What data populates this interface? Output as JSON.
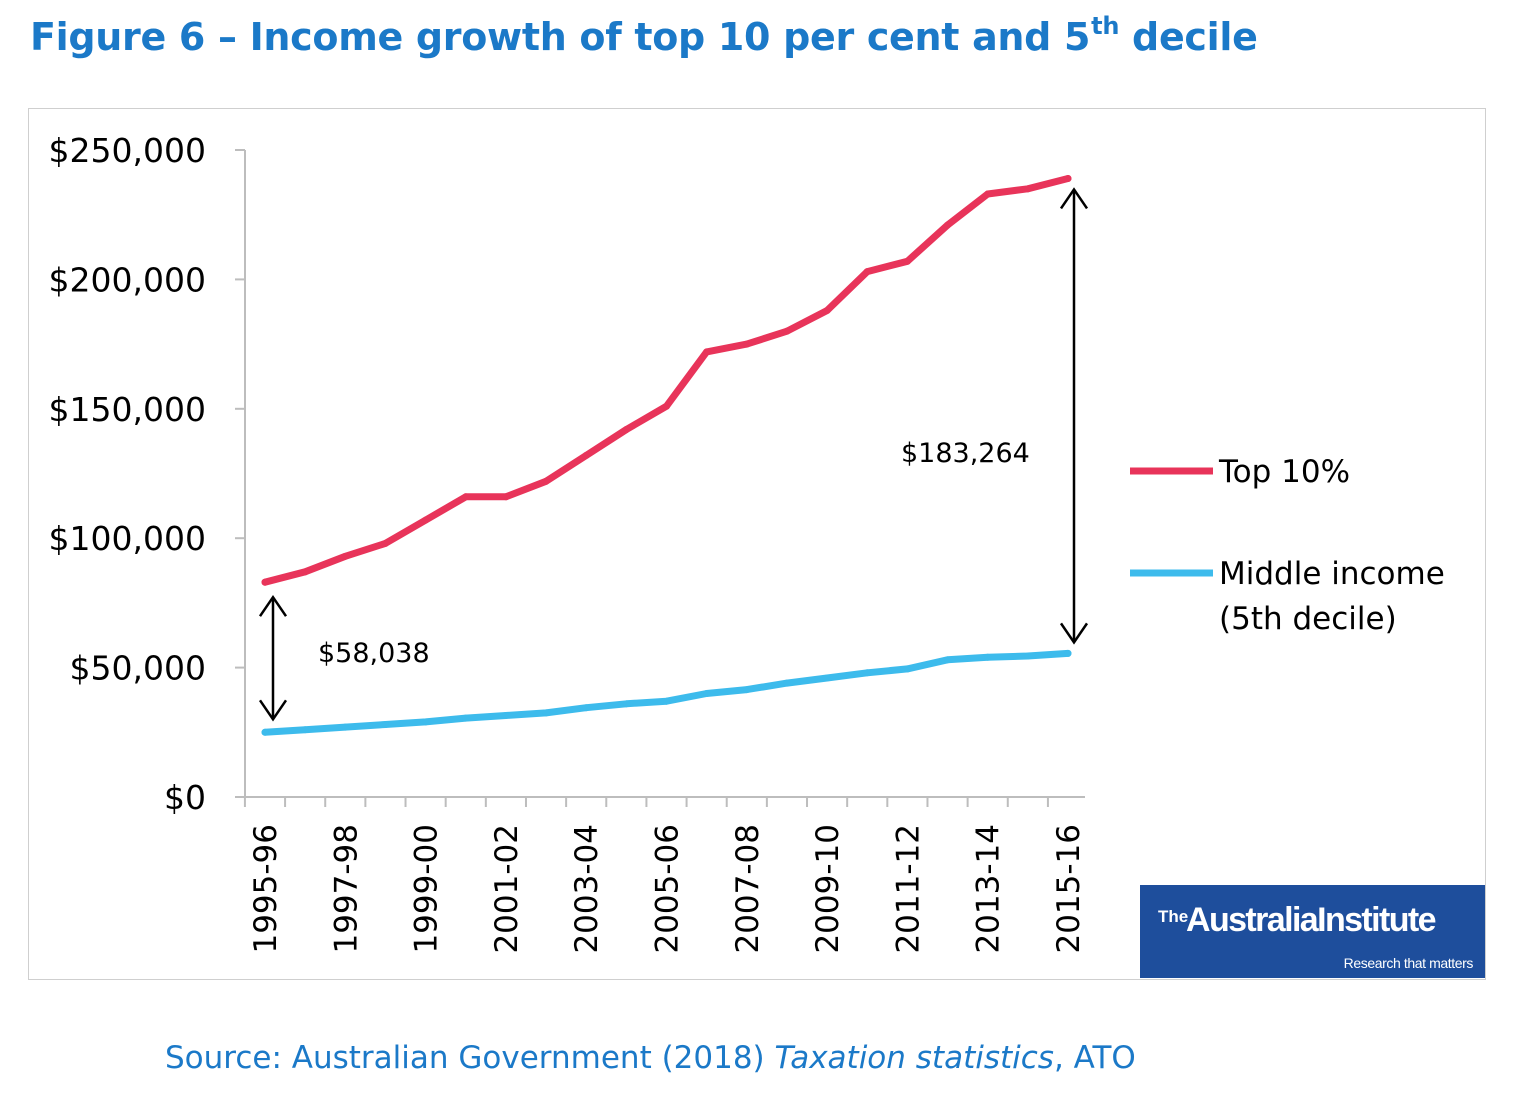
{
  "figure": {
    "title_main": "Figure 6 – Income growth of top 10 per cent and 5",
    "title_sup": "th",
    "title_end": " decile"
  },
  "chart_data": {
    "type": "line",
    "categories": [
      "1995-96",
      "1996-97",
      "1997-98",
      "1998-99",
      "1999-00",
      "2000-01",
      "2001-02",
      "2002-03",
      "2003-04",
      "2004-05",
      "2005-06",
      "2006-07",
      "2007-08",
      "2008-09",
      "2009-10",
      "2010-11",
      "2011-12",
      "2012-13",
      "2013-14",
      "2014-15",
      "2015-16"
    ],
    "tick_labels": [
      "1995-96",
      "1997-98",
      "1999-00",
      "2001-02",
      "2003-04",
      "2005-06",
      "2007-08",
      "2009-10",
      "2011-12",
      "2013-14",
      "2015-16"
    ],
    "series": [
      {
        "name": "Top 10%",
        "color": "#e8345a",
        "values": [
          83000,
          87000,
          93000,
          98000,
          107000,
          116000,
          116000,
          122000,
          132000,
          142000,
          151000,
          172000,
          175000,
          180000,
          188000,
          203000,
          207000,
          221000,
          233000,
          235000,
          239000
        ]
      },
      {
        "name": "Middle income (5th decile)",
        "color": "#3dbbec",
        "values": [
          25000,
          26000,
          27000,
          28000,
          29000,
          30500,
          31500,
          32500,
          34500,
          36000,
          37000,
          40000,
          41500,
          44000,
          46000,
          48000,
          49500,
          53000,
          54000,
          54500,
          55500
        ]
      }
    ],
    "ylim": [
      0,
      250000
    ],
    "yticks": [
      0,
      50000,
      100000,
      150000,
      200000,
      250000
    ],
    "ytick_labels": [
      "$0",
      "$50,000",
      "$100,000",
      "$150,000",
      "$200,000",
      "$250,000"
    ],
    "grid": false,
    "legend_position": "right",
    "annotations": [
      {
        "text": "$58,038",
        "category": "1995-96",
        "from": 25000,
        "to": 83000
      },
      {
        "text": "$183,264",
        "category": "2015-16",
        "from": 55500,
        "to": 239000
      }
    ]
  },
  "legend": {
    "top10": "Top 10%",
    "middle_line1": "Middle income",
    "middle_line2": "(5th decile)"
  },
  "logo": {
    "the": "The",
    "name": "AustraliaInstitute",
    "tagline": "Research that matters"
  },
  "source": {
    "prefix": "Source: Australian Government (2018) ",
    "italic": "Taxation statistics",
    "suffix": ", ATO"
  }
}
